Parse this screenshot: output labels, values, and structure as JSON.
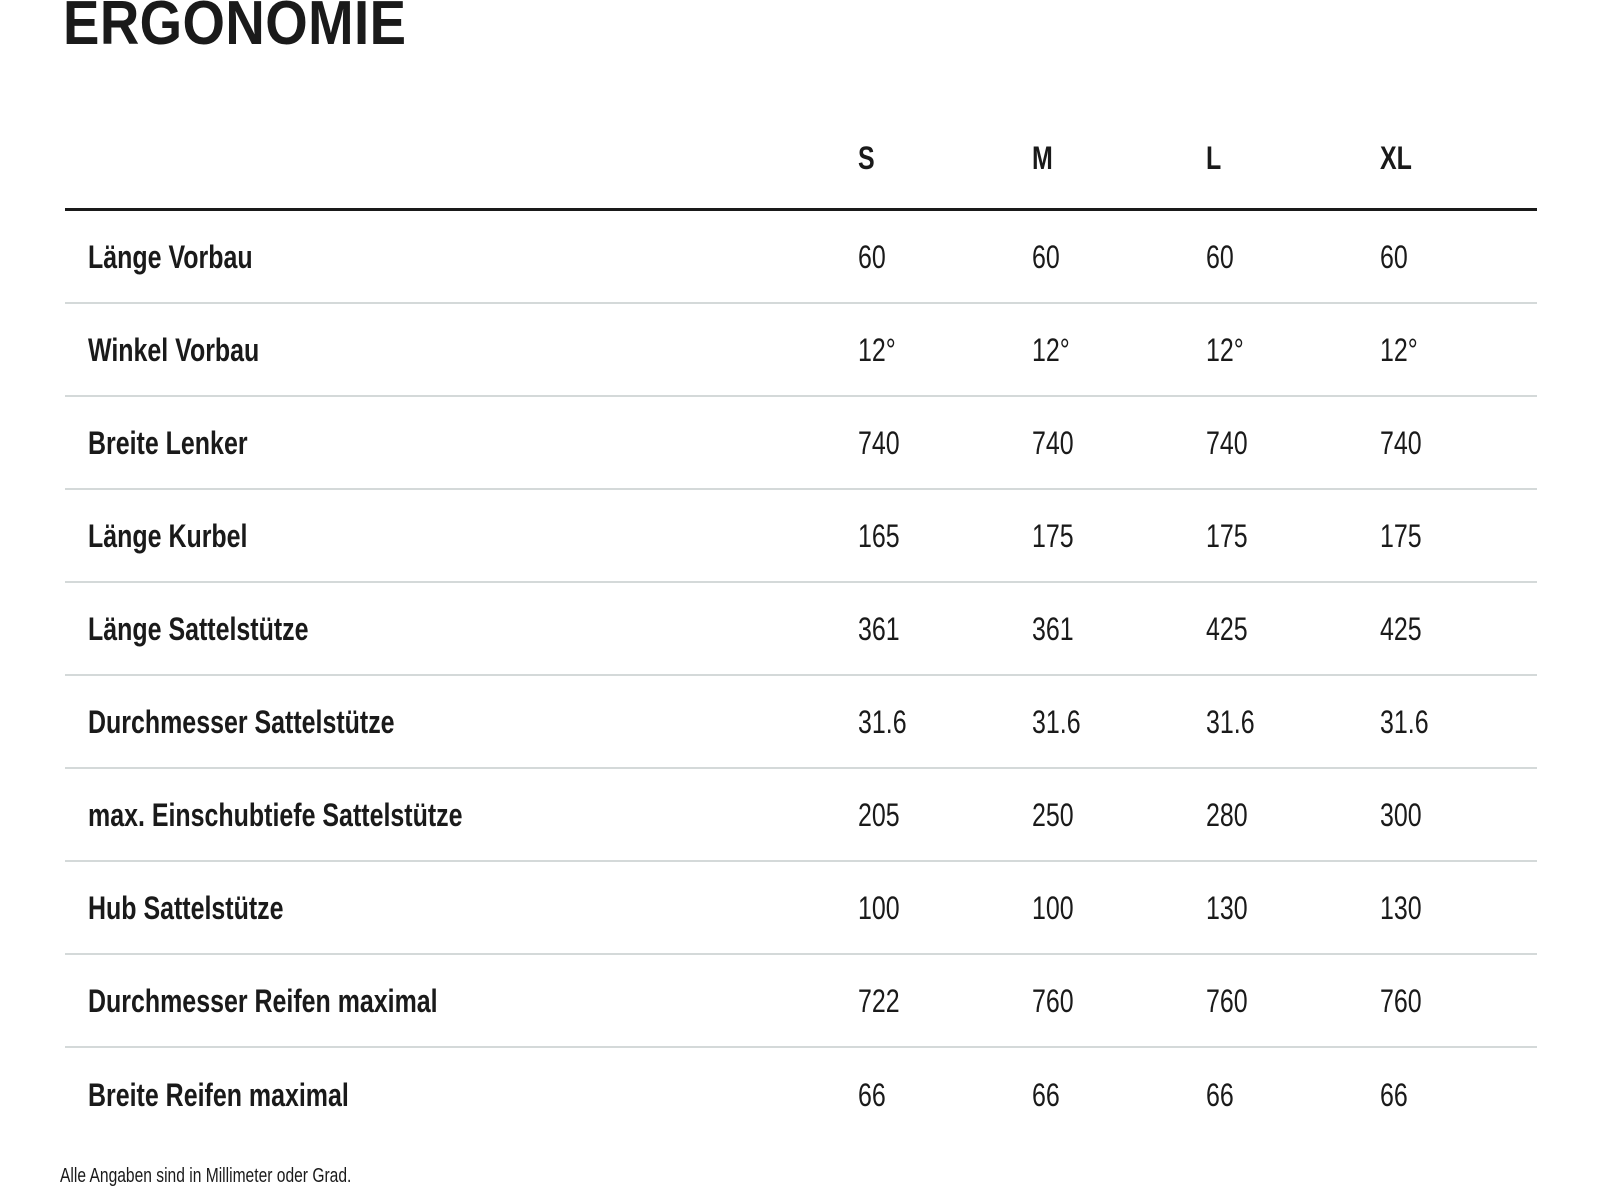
{
  "page": {
    "title": "ERGONOMIE",
    "footnote": "Alle Angaben sind in Millimeter oder Grad."
  },
  "table": {
    "size_columns": [
      "S",
      "M",
      "L",
      "XL"
    ],
    "rows": [
      {
        "label": "Länge Vorbau",
        "values": [
          "60",
          "60",
          "60",
          "60"
        ]
      },
      {
        "label": "Winkel Vorbau",
        "values": [
          "12°",
          "12°",
          "12°",
          "12°"
        ]
      },
      {
        "label": "Breite Lenker",
        "values": [
          "740",
          "740",
          "740",
          "740"
        ]
      },
      {
        "label": "Länge Kurbel",
        "values": [
          "165",
          "175",
          "175",
          "175"
        ]
      },
      {
        "label": "Länge Sattelstütze",
        "values": [
          "361",
          "361",
          "425",
          "425"
        ]
      },
      {
        "label": "Durchmesser Sattelstütze",
        "values": [
          "31.6",
          "31.6",
          "31.6",
          "31.6"
        ]
      },
      {
        "label": "max. Einschubtiefe Sattelstütze",
        "values": [
          "205",
          "250",
          "280",
          "300"
        ]
      },
      {
        "label": "Hub Sattelstütze",
        "values": [
          "100",
          "100",
          "130",
          "130"
        ]
      },
      {
        "label": "Durchmesser Reifen maximal",
        "values": [
          "722",
          "760",
          "760",
          "760"
        ]
      },
      {
        "label": "Breite Reifen maximal",
        "values": [
          "66",
          "66",
          "66",
          "66"
        ]
      }
    ]
  },
  "colors": {
    "text": "#1a1a1a",
    "header_rule": "#1a1a1a",
    "row_divider": "#d4d9d9",
    "background": "#ffffff"
  }
}
